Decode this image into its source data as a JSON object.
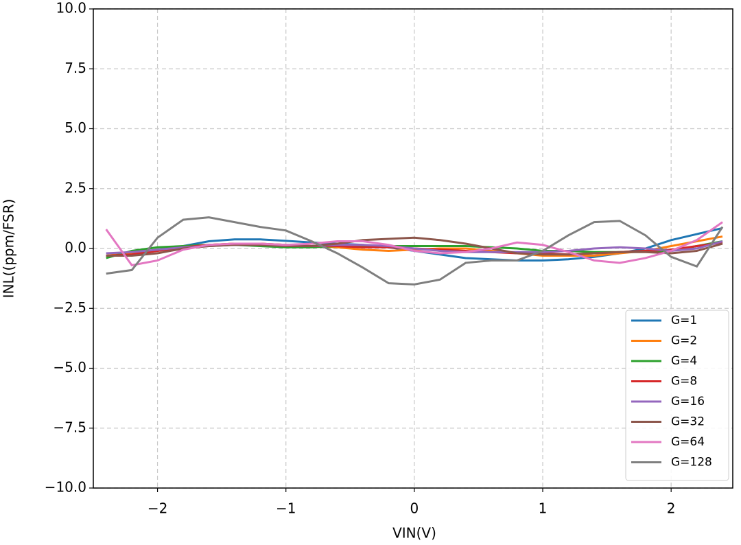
{
  "chart_data": {
    "type": "line",
    "xlabel": "VIN(V)",
    "ylabel": "INL((ppm/FSR)",
    "x": [
      -2.4,
      -2.2,
      -2.0,
      -1.8,
      -1.6,
      -1.4,
      -1.2,
      -1.0,
      -0.8,
      -0.6,
      -0.4,
      -0.2,
      0,
      0.2,
      0.4,
      0.6,
      0.8,
      1.0,
      1.2,
      1.4,
      1.6,
      1.8,
      2.0,
      2.2,
      2.4
    ],
    "series": [
      {
        "name": "G=1",
        "color": "#1f77b4",
        "values": [
          -0.3,
          -0.2,
          -0.05,
          0.1,
          0.3,
          0.38,
          0.38,
          0.32,
          0.25,
          0.2,
          0.15,
          0.05,
          -0.1,
          -0.25,
          -0.4,
          -0.45,
          -0.5,
          -0.5,
          -0.45,
          -0.35,
          -0.2,
          0,
          0.35,
          0.6,
          0.85
        ]
      },
      {
        "name": "G=2",
        "color": "#ff7f0e",
        "values": [
          -0.3,
          -0.2,
          -0.1,
          0.05,
          0.15,
          0.2,
          0.2,
          0.15,
          0.1,
          0.05,
          -0.05,
          -0.1,
          -0.05,
          0,
          0,
          -0.1,
          -0.2,
          -0.3,
          -0.3,
          -0.3,
          -0.2,
          -0.1,
          0.1,
          0.3,
          0.5
        ]
      },
      {
        "name": "G=4",
        "color": "#2ca02c",
        "values": [
          -0.4,
          -0.1,
          0.05,
          0.1,
          0.15,
          0.15,
          0.1,
          0.05,
          0.05,
          0.1,
          0.1,
          0.1,
          0.1,
          0.1,
          0.1,
          0.05,
          0,
          -0.1,
          -0.1,
          -0.15,
          -0.15,
          -0.1,
          -0.1,
          0.1,
          0.3
        ]
      },
      {
        "name": "G=8",
        "color": "#d62728",
        "values": [
          -0.3,
          -0.25,
          -0.1,
          0.05,
          0.15,
          0.2,
          0.2,
          0.15,
          0.1,
          0.1,
          0.05,
          0.05,
          0,
          -0.05,
          -0.1,
          -0.15,
          -0.2,
          -0.2,
          -0.25,
          -0.2,
          -0.15,
          -0.1,
          -0.05,
          0.1,
          0.25
        ]
      },
      {
        "name": "G=16",
        "color": "#9467bd",
        "values": [
          -0.2,
          -0.15,
          -0.05,
          0.05,
          0.1,
          0.15,
          0.15,
          0.1,
          0.1,
          0.15,
          0.15,
          0.1,
          0,
          -0.1,
          -0.15,
          -0.15,
          -0.15,
          -0.15,
          -0.1,
          0,
          0.05,
          0,
          -0.1,
          0,
          0.3
        ]
      },
      {
        "name": "G=32",
        "color": "#8c564b",
        "values": [
          -0.3,
          -0.3,
          -0.2,
          0,
          0.1,
          0.15,
          0.15,
          0.1,
          0.1,
          0.2,
          0.35,
          0.4,
          0.45,
          0.35,
          0.2,
          0,
          -0.2,
          -0.25,
          -0.25,
          -0.2,
          -0.15,
          -0.15,
          -0.2,
          -0.1,
          0.2
        ]
      },
      {
        "name": "G=64",
        "color": "#e377c2",
        "values": [
          0.8,
          -0.7,
          -0.5,
          -0.05,
          0.15,
          0.2,
          0.2,
          0.15,
          0.2,
          0.3,
          0.3,
          0.15,
          -0.1,
          -0.2,
          -0.15,
          0,
          0.25,
          0.15,
          -0.15,
          -0.5,
          -0.6,
          -0.4,
          -0.1,
          0.35,
          1.1
        ]
      },
      {
        "name": "G=128",
        "color": "#7f7f7f",
        "values": [
          -1.05,
          -0.9,
          0.45,
          1.2,
          1.3,
          1.1,
          0.9,
          0.75,
          0.3,
          -0.2,
          -0.8,
          -1.45,
          -1.5,
          -1.3,
          -0.6,
          -0.5,
          -0.5,
          -0.1,
          0.55,
          1.1,
          1.15,
          0.55,
          -0.35,
          -0.75,
          0.9
        ]
      }
    ],
    "xlim": [
      -2.5,
      2.48
    ],
    "xticks": [
      {
        "value": -2,
        "label": "−2"
      },
      {
        "value": -1,
        "label": "−1"
      },
      0,
      1,
      2
    ],
    "ylim": [
      -10,
      10
    ],
    "yticks": [
      {
        "value": -10,
        "label": "−10.0"
      },
      {
        "value": -7.5,
        "label": "−7.5"
      },
      {
        "value": -5,
        "label": "−5.0"
      },
      {
        "value": -2.5,
        "label": "−2.5"
      },
      {
        "value": 0,
        "label": "0.0"
      },
      {
        "value": 2.5,
        "label": "2.5"
      },
      {
        "value": 5,
        "label": "5.0"
      },
      {
        "value": 7.5,
        "label": "7.5"
      },
      {
        "value": 10,
        "label": "10.0"
      }
    ],
    "grid": true,
    "legend": "lower right"
  }
}
